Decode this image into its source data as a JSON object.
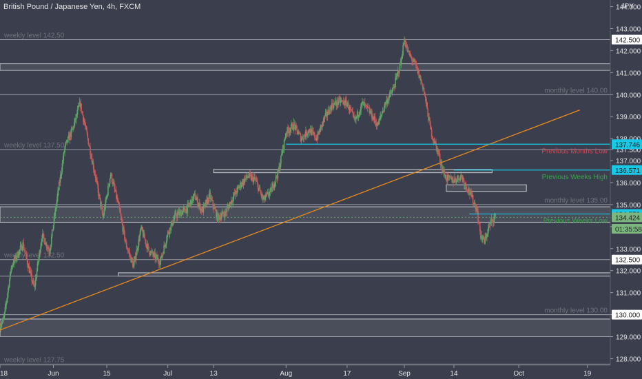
{
  "header": {
    "title": "British Pound / Japanese Yen, 4h, FXCM",
    "unit": "JPY"
  },
  "colors": {
    "background": "#3b3e4c",
    "up_candle": "#5da568",
    "down_candle": "#c75a5a",
    "trendline": "#e88c1e",
    "cyan_marker": "#17c9e6",
    "level_line": "#9a9ca6",
    "zone_border": "#c9cbd2",
    "axis_text": "#e4e4e4",
    "red_label": "#e0434f",
    "green_label": "#36a84a"
  },
  "chart_data": {
    "type": "candlestick",
    "symbol": "GBPJPY",
    "timeframe": "4h",
    "ylim": [
      127.7,
      144.3
    ],
    "y_ticks": [
      "128.000",
      "129.000",
      "130.000",
      "131.000",
      "132.000",
      "133.000",
      "134.000",
      "135.000",
      "136.000",
      "137.000",
      "137.500",
      "138.000",
      "139.000",
      "140.000",
      "141.000",
      "142.000",
      "143.000",
      "144.000"
    ],
    "x_range": [
      "2020-05-18",
      "2020-10-25"
    ],
    "x_ticks": [
      {
        "date": "2020-05-18",
        "label": "18"
      },
      {
        "date": "2020-06-01",
        "label": "Jun"
      },
      {
        "date": "2020-06-15",
        "label": "15"
      },
      {
        "date": "2020-07-01",
        "label": "Jul"
      },
      {
        "date": "2020-07-13",
        "label": "13"
      },
      {
        "date": "2020-08-01",
        "label": "Aug"
      },
      {
        "date": "2020-08-17",
        "label": "17"
      },
      {
        "date": "2020-09-01",
        "label": "Sep"
      },
      {
        "date": "2020-09-14",
        "label": "14"
      },
      {
        "date": "2020-10-01",
        "label": "Oct"
      },
      {
        "date": "2020-10-19",
        "label": "19"
      }
    ],
    "price_path": [
      [
        "2020-05-18",
        129.5
      ],
      [
        "2020-05-19",
        129.8
      ],
      [
        "2020-05-21",
        132.2
      ],
      [
        "2020-05-24",
        133.2
      ],
      [
        "2020-05-26",
        131.8
      ],
      [
        "2020-05-27",
        131.2
      ],
      [
        "2020-05-29",
        133.6
      ],
      [
        "2020-05-31",
        132.9
      ],
      [
        "2020-06-02",
        135.3
      ],
      [
        "2020-06-04",
        137.6
      ],
      [
        "2020-06-06",
        138.4
      ],
      [
        "2020-06-08",
        139.6
      ],
      [
        "2020-06-10",
        138.0
      ],
      [
        "2020-06-12",
        136.3
      ],
      [
        "2020-06-14",
        134.4
      ],
      [
        "2020-06-16",
        136.4
      ],
      [
        "2020-06-18",
        135.0
      ],
      [
        "2020-06-20",
        133.2
      ],
      [
        "2020-06-22",
        132.2
      ],
      [
        "2020-06-24",
        133.9
      ],
      [
        "2020-06-26",
        132.9
      ],
      [
        "2020-06-29",
        132.4
      ],
      [
        "2020-07-01",
        133.7
      ],
      [
        "2020-07-03",
        134.5
      ],
      [
        "2020-07-06",
        134.8
      ],
      [
        "2020-07-08",
        135.4
      ],
      [
        "2020-07-10",
        134.7
      ],
      [
        "2020-07-12",
        135.4
      ],
      [
        "2020-07-14",
        134.4
      ],
      [
        "2020-07-16",
        134.6
      ],
      [
        "2020-07-18",
        135.3
      ],
      [
        "2020-07-20",
        135.9
      ],
      [
        "2020-07-22",
        136.3
      ],
      [
        "2020-07-24",
        136.1
      ],
      [
        "2020-07-26",
        135.2
      ],
      [
        "2020-07-28",
        135.6
      ],
      [
        "2020-07-30",
        136.5
      ],
      [
        "2020-08-01",
        138.3
      ],
      [
        "2020-08-03",
        138.6
      ],
      [
        "2020-08-05",
        138.0
      ],
      [
        "2020-08-07",
        138.4
      ],
      [
        "2020-08-09",
        138.0
      ],
      [
        "2020-08-11",
        138.9
      ],
      [
        "2020-08-13",
        139.5
      ],
      [
        "2020-08-15",
        139.7
      ],
      [
        "2020-08-17",
        139.6
      ],
      [
        "2020-08-19",
        138.8
      ],
      [
        "2020-08-21",
        139.6
      ],
      [
        "2020-08-23",
        139.2
      ],
      [
        "2020-08-25",
        138.6
      ],
      [
        "2020-08-27",
        139.6
      ],
      [
        "2020-08-29",
        140.2
      ],
      [
        "2020-08-31",
        141.4
      ],
      [
        "2020-09-01",
        142.5
      ],
      [
        "2020-09-02",
        141.9
      ],
      [
        "2020-09-04",
        141.3
      ],
      [
        "2020-09-06",
        140.3
      ],
      [
        "2020-09-08",
        138.3
      ],
      [
        "2020-09-10",
        137.3
      ],
      [
        "2020-09-11",
        136.6
      ],
      [
        "2020-09-12",
        136.2
      ],
      [
        "2020-09-14",
        136.1
      ],
      [
        "2020-09-16",
        136.3
      ],
      [
        "2020-09-17",
        135.9
      ],
      [
        "2020-09-18",
        135.6
      ],
      [
        "2020-09-20",
        134.8
      ],
      [
        "2020-09-21",
        133.6
      ],
      [
        "2020-09-22",
        133.3
      ],
      [
        "2020-09-23",
        133.9
      ],
      [
        "2020-09-24",
        134.3
      ],
      [
        "2020-09-25",
        134.42
      ]
    ],
    "trendline": {
      "from": [
        "2020-05-18",
        129.3
      ],
      "to": [
        "2020-10-17",
        139.3
      ]
    },
    "horizontal_levels": [
      {
        "price": 142.5,
        "label": "weekly level 142.50",
        "label_side": "left"
      },
      {
        "price": 141.1
      },
      {
        "price": 140.0,
        "label": "monthly level 140.00",
        "label_side": "right"
      },
      {
        "price": 137.5,
        "label": "weekly level 137.50",
        "label_side": "left"
      },
      {
        "price": 135.0,
        "label": "monthly level 135.00",
        "label_side": "right"
      },
      {
        "price": 132.5,
        "label": "weekly level 132.50",
        "label_side": "left"
      },
      {
        "price": 131.75
      },
      {
        "price": 130.0,
        "label": "monthly level 130.00",
        "label_side": "right"
      },
      {
        "price": 129.0
      },
      {
        "price": 127.75,
        "label": "weekly level 127.75",
        "label_side": "left"
      }
    ],
    "zones": [
      {
        "x0": "2020-05-18",
        "x1": "2020-10-25",
        "top": 141.4,
        "bottom": 141.1
      },
      {
        "x0": "2020-05-18",
        "x1": "2020-10-25",
        "top": 134.9,
        "bottom": 134.2
      },
      {
        "x0": "2020-05-18",
        "x1": "2020-10-25",
        "top": 129.8,
        "bottom": 129.0
      },
      {
        "x0": "2020-07-13",
        "x1": "2020-09-24",
        "top": 136.6,
        "bottom": 136.45
      },
      {
        "x0": "2020-06-18",
        "x1": "2020-10-25",
        "top": 131.9,
        "bottom": 131.75
      },
      {
        "x0": "2020-09-12",
        "x1": "2020-10-03",
        "top": 135.9,
        "bottom": 135.6
      }
    ],
    "marker_lines": [
      {
        "price": 137.746,
        "from": "2020-08-01",
        "label": "Previous Months Low",
        "label_color": "#e0434f"
      },
      {
        "price": 136.571,
        "from": "2020-09-14",
        "label": "Previous Weeks High",
        "label_color": "#36a84a"
      },
      {
        "price": 134.573,
        "from": "2020-09-18",
        "label": "Previous Weeks Low",
        "label_color": "#36a84a"
      }
    ],
    "axis_tags": [
      {
        "price": 142.5,
        "text": "142.500",
        "bg": "#ffffff",
        "fg": "#222222"
      },
      {
        "price": 137.746,
        "text": "137.746",
        "bg": "#17c9e6",
        "fg": "#222222"
      },
      {
        "price": 136.571,
        "text": "136.571",
        "bg": "#17c9e6",
        "fg": "#222222"
      },
      {
        "price": 134.573,
        "text": "134.573",
        "bg": "#17c9e6",
        "fg": "#222222"
      },
      {
        "price": 134.424,
        "text": "134.424",
        "bg": "#7bb77f",
        "fg": "#222222"
      },
      {
        "price": 133.9,
        "text": "01:35:58",
        "bg": "#7bb77f",
        "fg": "#222222"
      },
      {
        "price": 132.5,
        "text": "132.500",
        "bg": "#ffffff",
        "fg": "#222222"
      },
      {
        "price": 130.0,
        "text": "130.000",
        "bg": "#ffffff",
        "fg": "#222222"
      }
    ],
    "last_price": 134.424,
    "countdown": "01:35:58",
    "grid": false
  }
}
